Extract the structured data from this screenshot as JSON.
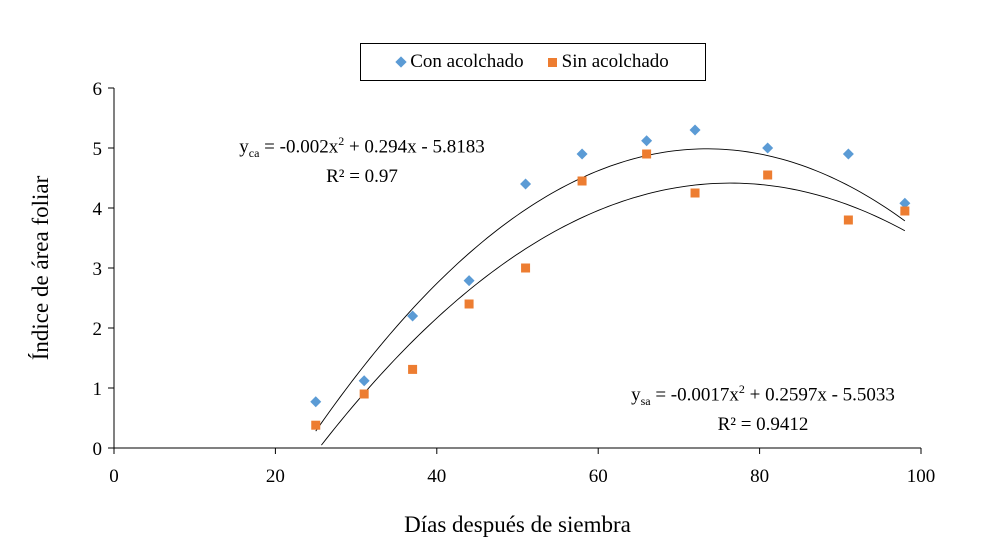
{
  "chart_data": {
    "type": "scatter",
    "xlabel": "Días después de siembra",
    "ylabel": "Índice de área foliar",
    "xlim": [
      0,
      100
    ],
    "ylim": [
      0,
      6
    ],
    "xticks": [
      0,
      20,
      40,
      60,
      80,
      100
    ],
    "yticks": [
      0,
      1,
      2,
      3,
      4,
      5,
      6
    ],
    "grid": false,
    "legend_position": "top",
    "series": [
      {
        "name": "Con acolchado",
        "marker": "diamond",
        "color": "#5b9bd5",
        "x": [
          25,
          31,
          37,
          44,
          51,
          58,
          66,
          72,
          81,
          91,
          98
        ],
        "y": [
          0.77,
          1.12,
          2.2,
          2.79,
          4.4,
          4.9,
          5.12,
          5.3,
          5.0,
          4.9,
          4.08
        ],
        "trendline": {
          "a": -0.002,
          "b": 0.294,
          "c": -5.8183,
          "x_range": [
            25,
            98
          ]
        },
        "equation": {
          "prefix": "y",
          "subscript": "ca",
          "body": " = -0.002x",
          "mid": " + 0.294x - 5.8183",
          "r2_label": "R² = 0.97"
        }
      },
      {
        "name": "Sin acolchado",
        "marker": "square",
        "color": "#ed7d31",
        "x": [
          25,
          31,
          37,
          44,
          51,
          58,
          66,
          72,
          81,
          91,
          98
        ],
        "y": [
          0.38,
          0.9,
          1.31,
          2.4,
          3.0,
          4.45,
          4.9,
          4.25,
          4.55,
          3.8,
          3.95
        ],
        "trendline": {
          "a": -0.0017,
          "b": 0.2597,
          "c": -5.5033,
          "x_range": [
            25.7,
            98
          ]
        },
        "equation": {
          "prefix": "y",
          "subscript": "sa",
          "body": " = -0.0017x",
          "mid": " + 0.2597x - 5.5033",
          "r2_label": "R² = 0.9412"
        }
      }
    ]
  }
}
